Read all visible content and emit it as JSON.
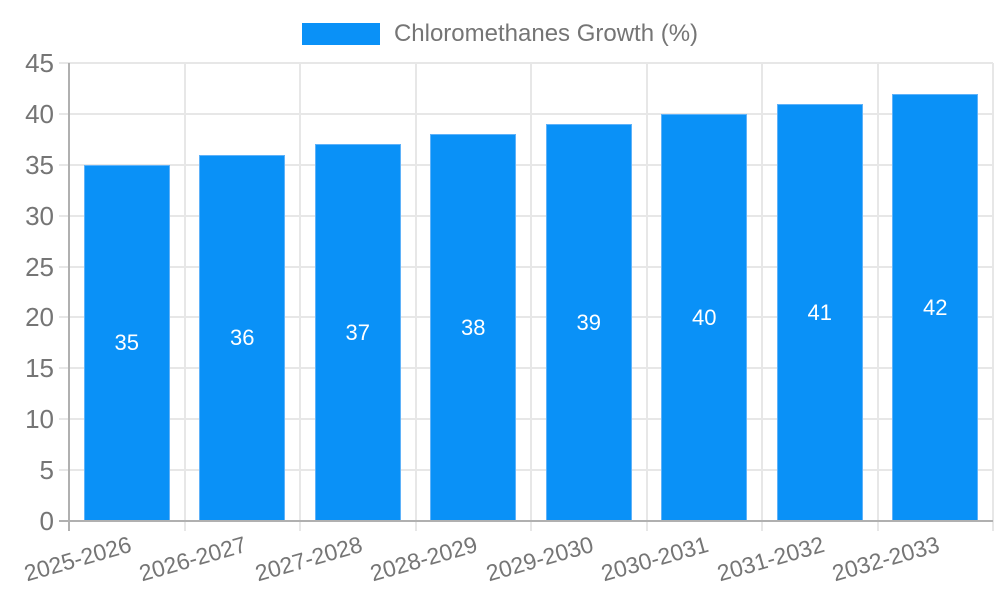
{
  "chart_data": {
    "type": "bar",
    "title": "Chloromethanes Growth (%)",
    "categories": [
      "2025-2026",
      "2026-2027",
      "2027-2028",
      "2028-2029",
      "2029-2030",
      "2030-2031",
      "2031-2032",
      "2032-2033"
    ],
    "values": [
      35,
      36,
      37,
      38,
      39,
      40,
      41,
      42
    ],
    "xlabel": "",
    "ylabel": "",
    "ylim": [
      0,
      45
    ],
    "yticks": [
      0,
      5,
      10,
      15,
      20,
      25,
      30,
      35,
      40,
      45
    ],
    "grid": true,
    "legend_position": "top",
    "data_labels": "inside-center",
    "colors": {
      "bar": "#0a91f7",
      "bar_border": "#5fb2f9",
      "gridline": "#e7e7e7",
      "axis": "#b0b0b0",
      "tick_text": "#757575",
      "legend_text": "#757575",
      "value_label": "#ffffff",
      "background": "#ffffff"
    }
  }
}
